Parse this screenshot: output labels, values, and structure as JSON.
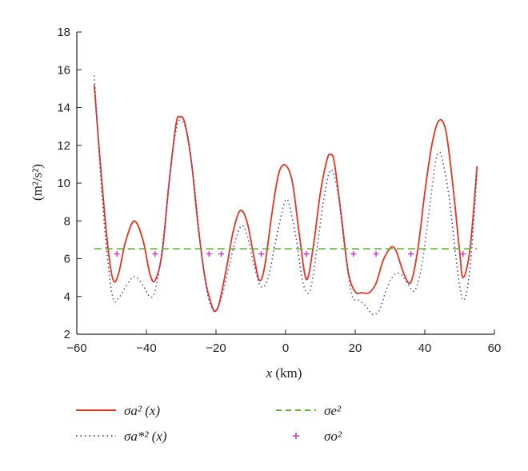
{
  "chart_data": {
    "type": "line",
    "xlabel_var": "x",
    "xlabel_unit": " (km)",
    "ylabel": "(m²/s²)",
    "xlim": [
      -60,
      60
    ],
    "ylim": [
      2,
      18
    ],
    "xticks": [
      -60,
      -40,
      -20,
      0,
      20,
      40,
      60
    ],
    "yticks": [
      2,
      4,
      6,
      8,
      10,
      12,
      14,
      16,
      18
    ],
    "grid": false,
    "legend_position": "below",
    "series": [
      {
        "name": "σa² (x)",
        "style": "solid",
        "color": "#e8331f",
        "x": [
          -55,
          -53,
          -51,
          -49.5,
          -48,
          -46,
          -43.5,
          -41,
          -39,
          -37.5,
          -35.5,
          -33.5,
          -31.5,
          -30.5,
          -29,
          -27,
          -25,
          -23,
          -21,
          -20,
          -19,
          -17,
          -15,
          -13,
          -11,
          -9,
          -7.5,
          -6,
          -4,
          -2,
          0,
          2,
          4,
          6,
          8,
          10,
          12,
          13,
          14,
          16,
          18,
          20,
          22,
          24,
          26,
          28,
          30,
          31,
          32,
          34,
          36,
          38,
          40,
          42,
          44,
          46,
          48,
          50,
          51,
          53,
          55
        ],
        "y": [
          15.2,
          10.5,
          6.5,
          4.85,
          5.2,
          6.9,
          8.0,
          7.0,
          5.2,
          4.85,
          6.3,
          10.0,
          13.1,
          13.5,
          13.2,
          11.0,
          7.5,
          4.8,
          3.4,
          3.25,
          3.7,
          5.5,
          7.5,
          8.55,
          7.9,
          6.0,
          4.85,
          5.6,
          8.3,
          10.5,
          10.95,
          10.0,
          7.2,
          4.9,
          6.7,
          9.5,
          11.3,
          11.5,
          11.1,
          8.3,
          5.3,
          4.25,
          4.2,
          4.2,
          4.7,
          5.9,
          6.55,
          6.6,
          6.3,
          5.2,
          4.75,
          6.5,
          9.5,
          12.0,
          13.3,
          12.8,
          10.0,
          6.4,
          5.0,
          6.5,
          10.9
        ]
      },
      {
        "name": "σa*² (x)",
        "style": "dotted",
        "color": "#5551b5",
        "x": [
          -55,
          -53,
          -51,
          -49.5,
          -48,
          -46,
          -43.5,
          -41,
          -39,
          -37.5,
          -35.5,
          -33.5,
          -31.5,
          -30,
          -28,
          -26,
          -24,
          -22,
          -20,
          -18,
          -16,
          -14,
          -12.5,
          -11,
          -9,
          -7,
          -5,
          -3,
          -1,
          0,
          1,
          3,
          5,
          7,
          9,
          11,
          13,
          15,
          17,
          19,
          21,
          23,
          25,
          27,
          29,
          31,
          33,
          35,
          37,
          39,
          41,
          43,
          44,
          45,
          47,
          49,
          51,
          53,
          55
        ],
        "y": [
          15.7,
          10.0,
          5.7,
          3.85,
          3.9,
          4.5,
          5.05,
          4.6,
          4.0,
          4.3,
          6.5,
          10.0,
          12.8,
          13.3,
          12.4,
          9.5,
          6.0,
          3.8,
          3.3,
          4.2,
          5.8,
          7.2,
          7.75,
          7.2,
          5.6,
          4.5,
          5.0,
          6.8,
          8.5,
          9.1,
          8.9,
          7.1,
          4.7,
          4.3,
          6.5,
          9.2,
          10.7,
          9.5,
          6.5,
          4.1,
          3.8,
          3.5,
          3.05,
          3.3,
          4.4,
          5.1,
          5.2,
          4.7,
          4.3,
          5.5,
          8.2,
          11.0,
          11.6,
          11.3,
          9.2,
          6.0,
          3.8,
          5.5,
          10.5
        ]
      },
      {
        "name": "σe²",
        "style": "dashed",
        "color": "#62b533",
        "x": [
          -55,
          55
        ],
        "y": [
          6.52,
          6.52
        ]
      },
      {
        "name": "σo²",
        "style": "markers",
        "color": "#cc33cc",
        "x": [
          -48.5,
          -37.5,
          -22,
          -18.5,
          -7,
          6,
          19.5,
          26,
          36,
          51
        ],
        "y": [
          6.25,
          6.25,
          6.25,
          6.25,
          6.25,
          6.25,
          6.25,
          6.25,
          6.25,
          6.25
        ]
      }
    ]
  }
}
